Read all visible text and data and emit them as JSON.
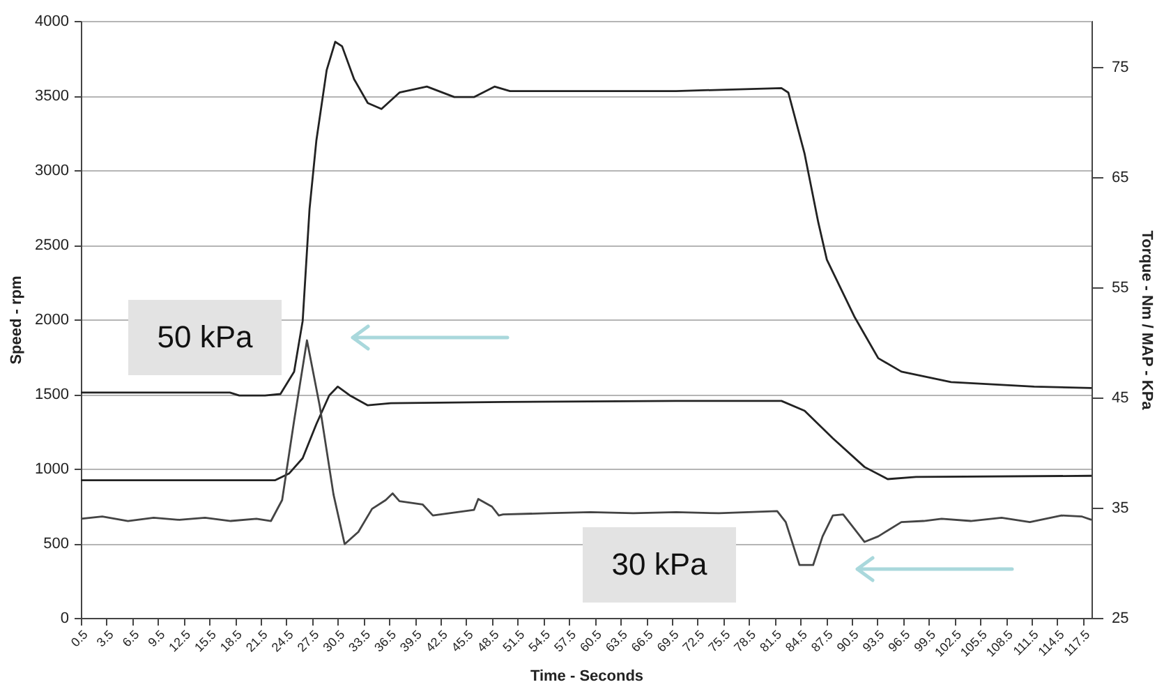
{
  "chart_data": {
    "type": "line",
    "xlabel": "Time - Seconds",
    "ylabel": "Speed - rpm",
    "y2label": "Torque - Nm / MAP - KPa",
    "xlim": [
      0.5,
      118.5
    ],
    "xticks": [
      0.5,
      3.5,
      6.5,
      9.5,
      12.5,
      15.5,
      18.5,
      21.5,
      24.5,
      27.5,
      30.5,
      33.5,
      36.5,
      39.5,
      42.5,
      45.5,
      48.5,
      51.5,
      54.5,
      57.5,
      60.5,
      63.5,
      66.5,
      69.5,
      72.5,
      75.5,
      78.5,
      81.5,
      84.5,
      87.5,
      90.5,
      93.5,
      96.5,
      99.5,
      102.5,
      105.5,
      108.5,
      111.5,
      114.5,
      117.5
    ],
    "ylim": [
      0,
      4000
    ],
    "yticks": [
      0,
      500,
      1000,
      1500,
      2000,
      2500,
      3000,
      3500,
      4000
    ],
    "y2lim": [
      25,
      79.2
    ],
    "y2ticks": [
      25,
      35,
      45,
      55,
      65,
      75
    ],
    "grid": "y",
    "series": [
      {
        "color": "#222222",
        "x": [
          0.5,
          10,
          17.9,
          19,
          22,
          23.8,
          25.4,
          26.4,
          27.2,
          28,
          29.2,
          30.2,
          31,
          32.4,
          34,
          35.6,
          37.7,
          40.9,
          44.1,
          46.4,
          48.8,
          50.6,
          60,
          70,
          82.3,
          83.1,
          85,
          86.6,
          87.6,
          90.8,
          93.6,
          96.3,
          102.1,
          111.8,
          118.5
        ],
        "values": [
          1510,
          1510,
          1510,
          1490,
          1490,
          1500,
          1650,
          1990,
          2740,
          3200,
          3670,
          3860,
          3830,
          3610,
          3450,
          3410,
          3520,
          3560,
          3490,
          3490,
          3560,
          3530,
          3530,
          3530,
          3550,
          3520,
          3110,
          2650,
          2400,
          2020,
          1740,
          1650,
          1580,
          1550,
          1540
        ]
      },
      {
        "color": "#222222",
        "axis": "y2",
        "x": [
          0.5,
          12,
          23.2,
          24.8,
          26.4,
          28,
          29.5,
          30.5,
          31.9,
          34,
          36.7,
          50,
          70,
          82.3,
          85,
          88.3,
          92,
          94.7,
          98,
          118.5
        ],
        "values": [
          37.5,
          37.5,
          37.5,
          38.1,
          39.5,
          42.6,
          45.2,
          46.0,
          45.2,
          44.3,
          44.5,
          44.6,
          44.7,
          44.7,
          43.8,
          41.3,
          38.7,
          37.6,
          37.8,
          37.9
        ]
      },
      {
        "color": "#444444",
        "axis": "y2",
        "x": [
          0.5,
          3,
          6,
          9,
          12,
          15,
          18,
          21,
          22.7,
          24,
          25.4,
          26.9,
          28.4,
          30,
          31.3,
          32.9,
          34.5,
          36.1,
          36.9,
          37.7,
          40.4,
          41.6,
          46.4,
          46.9,
          48.5,
          49.3,
          49.8,
          55,
          60,
          65,
          70,
          75,
          81.8,
          82.8,
          84.4,
          86,
          87.1,
          88.3,
          89.5,
          92,
          93.6,
          96.3,
          98.9,
          101,
          104.4,
          108,
          111.3,
          115,
          117.4,
          118.5
        ],
        "values": [
          34.0,
          34.2,
          33.8,
          34.1,
          33.9,
          34.1,
          33.8,
          34.0,
          33.8,
          35.7,
          42.9,
          50.2,
          44.2,
          36.2,
          31.7,
          32.8,
          34.9,
          35.7,
          36.3,
          35.6,
          35.3,
          34.3,
          34.8,
          35.8,
          35.1,
          34.3,
          34.4,
          34.5,
          34.6,
          34.5,
          34.6,
          34.5,
          34.7,
          33.7,
          29.8,
          29.8,
          32.4,
          34.3,
          34.4,
          31.9,
          32.4,
          33.7,
          33.8,
          34.0,
          33.8,
          34.1,
          33.7,
          34.3,
          34.2,
          33.9
        ]
      }
    ],
    "annotations": [
      "50 kPa",
      "30 kPa"
    ]
  }
}
